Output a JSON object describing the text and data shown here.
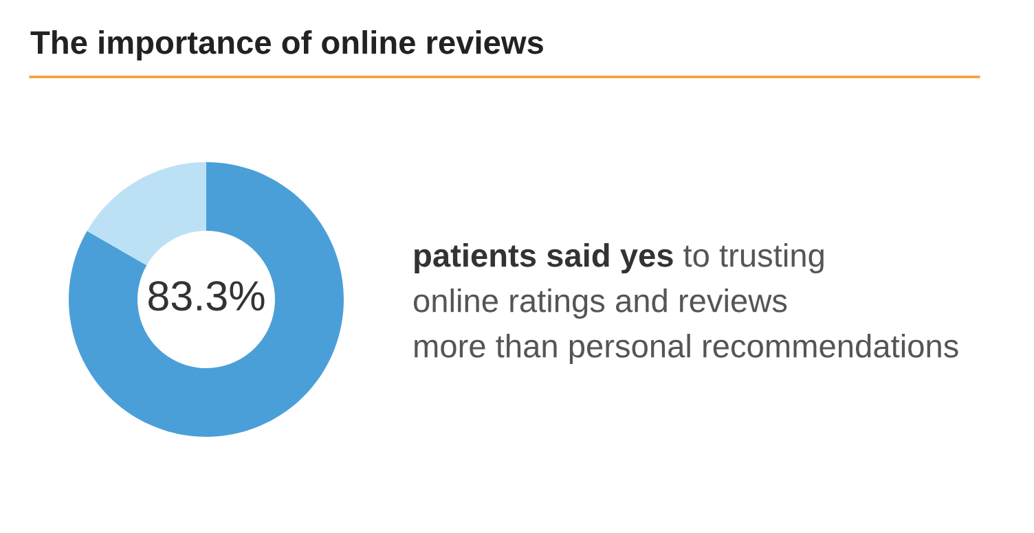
{
  "chart_data": {
    "type": "donut",
    "title": "The importance of online reviews",
    "categories": [
      null,
      null
    ],
    "values": [
      83.3,
      16.7
    ],
    "colors": [
      "#4a9fd8",
      "#bde1f4"
    ],
    "value_labels": [
      "83.3%",
      null
    ],
    "legend": false,
    "annotations": [
      "patients said yes",
      "to trusting online ratings and reviews more than personal recommendations"
    ]
  }
}
